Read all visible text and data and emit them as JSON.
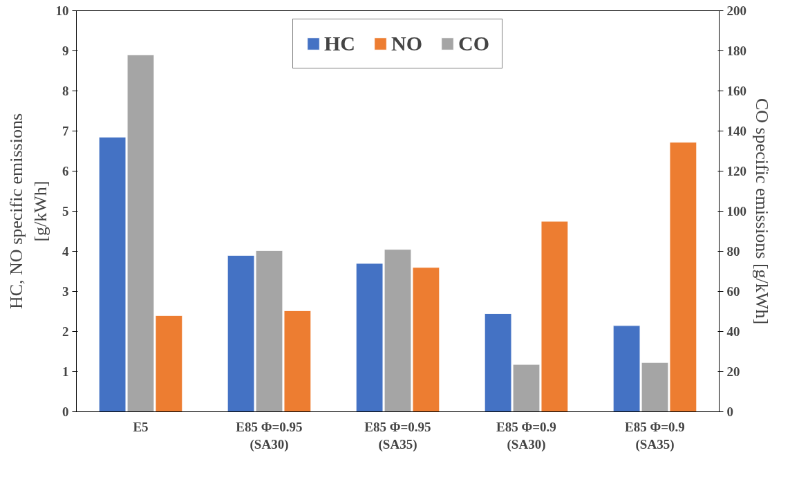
{
  "chart_data": {
    "type": "bar",
    "categories": [
      "E5",
      "E85 Φ=0.95\n(SA30)",
      "E85 Φ=0.95\n(SA35)",
      "E85 Φ=0.9\n(SA30)",
      "E85 Φ=0.9\n(SA35)"
    ],
    "ylabel": "HC, NO specific emissions\n[g/kWh]",
    "y2label": "CO specific emissions [g/kWh]",
    "series": [
      {
        "name": "HC",
        "color": "#4472c4",
        "values": [
          6.85,
          3.9,
          3.7,
          2.45,
          2.15
        ]
      },
      {
        "name": "CO",
        "color": "#a5a5a5",
        "axis": "y2",
        "values": [
          178,
          80.4,
          81,
          23.6,
          24.6
        ]
      },
      {
        "name": "NO",
        "color": "#ed7d31",
        "values": [
          2.4,
          2.52,
          3.6,
          4.75,
          6.72
        ]
      }
    ],
    "ylim": [
      0,
      10
    ],
    "yticks": [
      0,
      1,
      2,
      3,
      4,
      5,
      6,
      7,
      8,
      9,
      10
    ],
    "y2lim": [
      0,
      200
    ],
    "y2ticks": [
      0,
      20,
      40,
      60,
      80,
      100,
      120,
      140,
      160,
      180,
      200
    ],
    "grid": false,
    "legend": "top"
  }
}
